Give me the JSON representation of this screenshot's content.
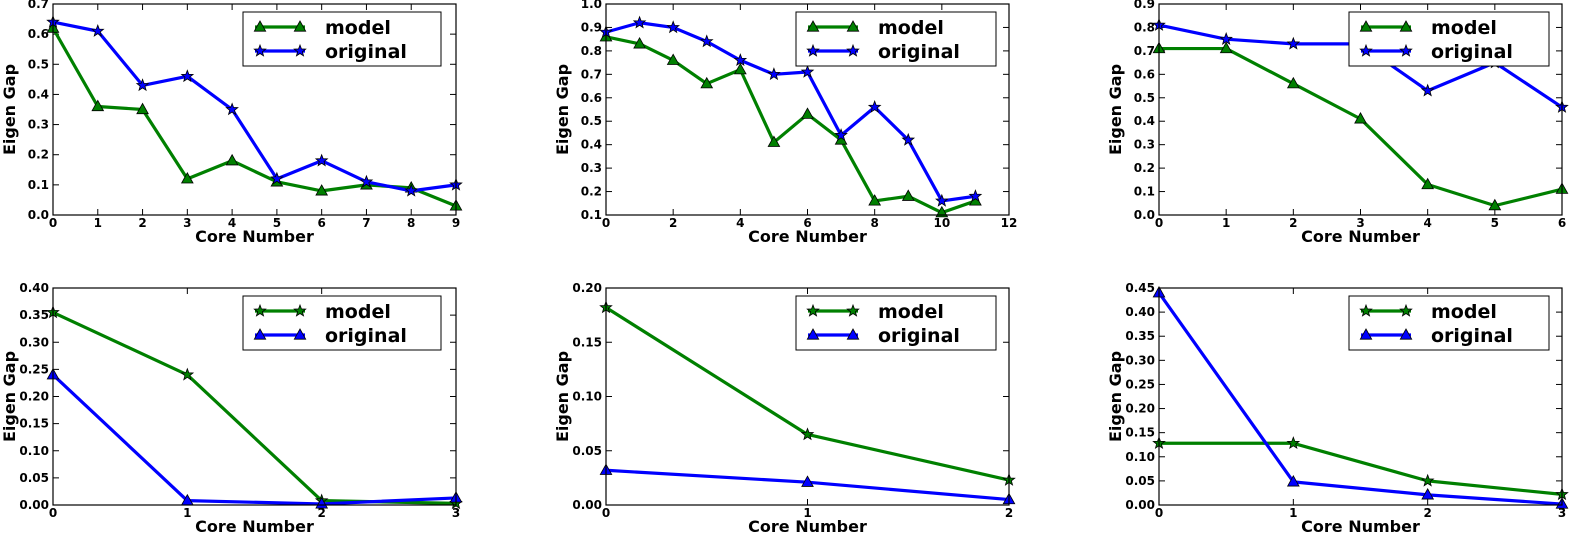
{
  "chart_data": [
    {
      "type": "line",
      "xlabel": "Core Number",
      "ylabel": "Eigen Gap",
      "xlim": [
        0,
        9
      ],
      "ylim": [
        0.0,
        0.7
      ],
      "xticks": [
        "0",
        "1",
        "2",
        "3",
        "4",
        "5",
        "6",
        "7",
        "8",
        "9"
      ],
      "yticks": [
        "0.0",
        "0.1",
        "0.2",
        "0.3",
        "0.4",
        "0.5",
        "0.6",
        "0.7"
      ],
      "legend_position": "top-right",
      "series": [
        {
          "name": "model",
          "color": "#008000",
          "marker": "triangle",
          "x": [
            0,
            1,
            2,
            3,
            4,
            5,
            6,
            7,
            8,
            9
          ],
          "y": [
            0.62,
            0.36,
            0.35,
            0.12,
            0.18,
            0.11,
            0.08,
            0.1,
            0.09,
            0.03
          ]
        },
        {
          "name": "original",
          "color": "#0000ff",
          "marker": "star",
          "x": [
            0,
            1,
            2,
            3,
            4,
            5,
            6,
            7,
            8,
            9
          ],
          "y": [
            0.64,
            0.61,
            0.43,
            0.46,
            0.35,
            0.12,
            0.18,
            0.11,
            0.08,
            0.1
          ]
        }
      ]
    },
    {
      "type": "line",
      "xlabel": "Core Number",
      "ylabel": "Eigen Gap",
      "xlim": [
        0,
        12
      ],
      "ylim": [
        0.1,
        1.0
      ],
      "xticks": [
        "0",
        "2",
        "4",
        "6",
        "8",
        "10",
        "12"
      ],
      "yticks": [
        "0.1",
        "0.2",
        "0.3",
        "0.4",
        "0.5",
        "0.6",
        "0.7",
        "0.8",
        "0.9",
        "1.0"
      ],
      "legend_position": "top-right",
      "series": [
        {
          "name": "model",
          "color": "#008000",
          "marker": "triangle",
          "x": [
            0,
            1,
            2,
            3,
            4,
            5,
            6,
            7,
            8,
            9,
            10,
            11
          ],
          "y": [
            0.86,
            0.83,
            0.76,
            0.66,
            0.72,
            0.41,
            0.53,
            0.42,
            0.16,
            0.18,
            0.11,
            0.16
          ]
        },
        {
          "name": "original",
          "color": "#0000ff",
          "marker": "star",
          "x": [
            0,
            1,
            2,
            3,
            4,
            5,
            6,
            7,
            8,
            9,
            10,
            11
          ],
          "y": [
            0.88,
            0.92,
            0.9,
            0.84,
            0.76,
            0.7,
            0.71,
            0.44,
            0.56,
            0.42,
            0.16,
            0.18
          ]
        }
      ]
    },
    {
      "type": "line",
      "xlabel": "Core Number",
      "ylabel": "Eigen Gap",
      "xlim": [
        0,
        6
      ],
      "ylim": [
        0.0,
        0.9
      ],
      "xticks": [
        "0",
        "1",
        "2",
        "3",
        "4",
        "5",
        "6"
      ],
      "yticks": [
        "0.0",
        "0.1",
        "0.2",
        "0.3",
        "0.4",
        "0.5",
        "0.6",
        "0.7",
        "0.8",
        "0.9"
      ],
      "legend_position": "top-right",
      "series": [
        {
          "name": "model",
          "color": "#008000",
          "marker": "triangle",
          "x": [
            0,
            1,
            2,
            3,
            4,
            5,
            6
          ],
          "y": [
            0.71,
            0.71,
            0.56,
            0.41,
            0.13,
            0.04,
            0.11
          ]
        },
        {
          "name": "original",
          "color": "#0000ff",
          "marker": "star",
          "x": [
            0,
            1,
            2,
            3,
            4,
            5,
            6
          ],
          "y": [
            0.81,
            0.75,
            0.73,
            0.73,
            0.53,
            0.65,
            0.46
          ]
        }
      ]
    },
    {
      "type": "line",
      "xlabel": "Core Number",
      "ylabel": "Eigen Gap",
      "xlim": [
        0,
        3
      ],
      "ylim": [
        0.0,
        0.4
      ],
      "xticks": [
        "0",
        "1",
        "2",
        "3"
      ],
      "yticks": [
        "0.00",
        "0.05",
        "0.10",
        "0.15",
        "0.20",
        "0.25",
        "0.30",
        "0.35",
        "0.40"
      ],
      "legend_position": "top-right",
      "series": [
        {
          "name": "model",
          "color": "#008000",
          "marker": "star",
          "x": [
            0,
            1,
            2,
            3
          ],
          "y": [
            0.355,
            0.24,
            0.008,
            0.003
          ]
        },
        {
          "name": "original",
          "color": "#0000ff",
          "marker": "triangle",
          "x": [
            0,
            1,
            2,
            3
          ],
          "y": [
            0.24,
            0.008,
            0.002,
            0.013
          ]
        }
      ]
    },
    {
      "type": "line",
      "xlabel": "Core Number",
      "ylabel": "Eigen Gap",
      "xlim": [
        0,
        2
      ],
      "ylim": [
        0.0,
        0.2
      ],
      "xticks": [
        "0",
        "1",
        "2"
      ],
      "yticks": [
        "0.00",
        "0.05",
        "0.10",
        "0.15",
        "0.20"
      ],
      "legend_position": "top-right",
      "series": [
        {
          "name": "model",
          "color": "#008000",
          "marker": "star",
          "x": [
            0,
            1,
            2
          ],
          "y": [
            0.182,
            0.065,
            0.023
          ]
        },
        {
          "name": "original",
          "color": "#0000ff",
          "marker": "triangle",
          "x": [
            0,
            1,
            2
          ],
          "y": [
            0.032,
            0.021,
            0.005
          ]
        }
      ]
    },
    {
      "type": "line",
      "xlabel": "Core Number",
      "ylabel": "Eigen Gap",
      "xlim": [
        0,
        3
      ],
      "ylim": [
        0.0,
        0.45
      ],
      "xticks": [
        "0",
        "1",
        "2",
        "3"
      ],
      "yticks": [
        "0.00",
        "0.05",
        "0.10",
        "0.15",
        "0.20",
        "0.25",
        "0.30",
        "0.35",
        "0.40",
        "0.45"
      ],
      "legend_position": "top-right",
      "series": [
        {
          "name": "model",
          "color": "#008000",
          "marker": "star",
          "x": [
            0,
            1,
            2,
            3
          ],
          "y": [
            0.128,
            0.128,
            0.05,
            0.022
          ]
        },
        {
          "name": "original",
          "color": "#0000ff",
          "marker": "triangle",
          "x": [
            0,
            1,
            2,
            3
          ],
          "y": [
            0.44,
            0.048,
            0.021,
            0.002
          ]
        }
      ]
    }
  ]
}
